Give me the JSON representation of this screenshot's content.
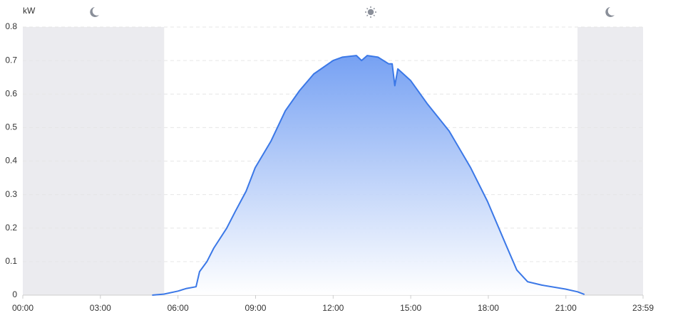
{
  "chart_data": {
    "type": "area",
    "y_label": "kW",
    "x": [
      300,
      327,
      360,
      380,
      402,
      410,
      427,
      443,
      473,
      493,
      518,
      539,
      576,
      609,
      642,
      675,
      720,
      741,
      774,
      786,
      799,
      824,
      849,
      857,
      863,
      870,
      900,
      939,
      989,
      1039,
      1078,
      1121,
      1146,
      1171,
      1204,
      1259,
      1287,
      1303
    ],
    "series": [
      {
        "color": "#3b78e7",
        "values": [
          0,
          0.003,
          0.012,
          0.02,
          0.025,
          0.07,
          0.1,
          0.14,
          0.2,
          0.25,
          0.31,
          0.38,
          0.46,
          0.55,
          0.61,
          0.66,
          0.7,
          0.71,
          0.715,
          0.7,
          0.715,
          0.71,
          0.69,
          0.69,
          0.625,
          0.675,
          0.64,
          0.57,
          0.49,
          0.38,
          0.28,
          0.15,
          0.075,
          0.04,
          0.03,
          0.018,
          0.01,
          0.002
        ]
      }
    ],
    "xlim": [
      0,
      1439
    ],
    "xticks": [
      {
        "value": 0,
        "label": "00:00"
      },
      {
        "value": 180,
        "label": "03:00"
      },
      {
        "value": 360,
        "label": "06:00"
      },
      {
        "value": 540,
        "label": "09:00"
      },
      {
        "value": 720,
        "label": "12:00"
      },
      {
        "value": 900,
        "label": "15:00"
      },
      {
        "value": 1080,
        "label": "18:00"
      },
      {
        "value": 1260,
        "label": "21:00"
      },
      {
        "value": 1439,
        "label": "23:59"
      }
    ],
    "ylim": [
      0,
      0.8
    ],
    "yticks": [
      0,
      0.1,
      0.2,
      0.3,
      0.4,
      0.5,
      0.6,
      0.7,
      0.8
    ],
    "grid": true,
    "night": [
      [
        0,
        328
      ],
      [
        1287,
        1439
      ]
    ]
  }
}
